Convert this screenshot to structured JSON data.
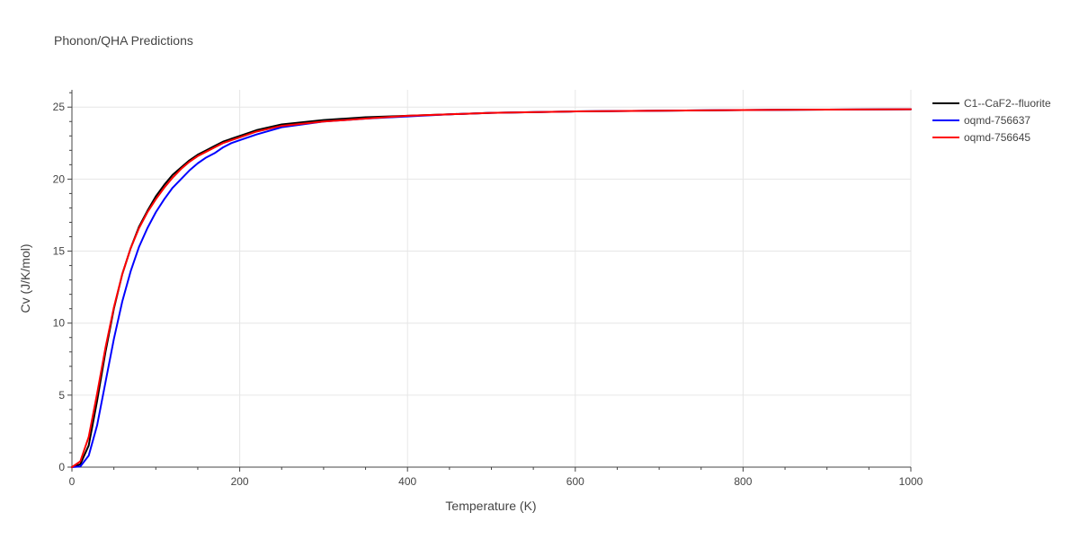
{
  "chart_data": {
    "type": "line",
    "title": "Phonon/QHA Predictions",
    "xlabel": "Temperature (K)",
    "ylabel": "Cv (J/K/mol)",
    "xlim": [
      0,
      1000
    ],
    "ylim": [
      0,
      26.2
    ],
    "x_ticks": [
      0,
      200,
      400,
      600,
      800,
      1000
    ],
    "y_ticks": [
      0,
      5,
      10,
      15,
      20,
      25
    ],
    "grid": true,
    "legend_position": "top-right outside",
    "series": [
      {
        "name": "C1--CaF2--fluorite",
        "color": "#000000",
        "x": [
          0,
          10,
          20,
          30,
          40,
          50,
          60,
          70,
          80,
          90,
          100,
          110,
          120,
          130,
          140,
          150,
          160,
          170,
          180,
          190,
          200,
          220,
          250,
          300,
          350,
          400,
          450,
          500,
          600,
          700,
          800,
          900,
          1000
        ],
        "y": [
          0,
          0.2,
          1.5,
          4.6,
          8.0,
          11.0,
          13.4,
          15.2,
          16.7,
          17.8,
          18.8,
          19.6,
          20.3,
          20.8,
          21.3,
          21.7,
          22.0,
          22.3,
          22.6,
          22.8,
          23.0,
          23.4,
          23.8,
          24.1,
          24.3,
          24.4,
          24.5,
          24.6,
          24.7,
          24.75,
          24.8,
          24.83,
          24.85
        ]
      },
      {
        "name": "oqmd-756637",
        "color": "#0000ff",
        "x": [
          0,
          10,
          20,
          30,
          40,
          50,
          60,
          70,
          80,
          90,
          100,
          110,
          120,
          130,
          140,
          150,
          160,
          170,
          180,
          190,
          200,
          220,
          250,
          300,
          350,
          400,
          450,
          500,
          600,
          700,
          800,
          900,
          1000
        ],
        "y": [
          0,
          0.05,
          0.8,
          2.9,
          5.9,
          8.9,
          11.5,
          13.6,
          15.3,
          16.6,
          17.7,
          18.6,
          19.4,
          20.0,
          20.6,
          21.1,
          21.5,
          21.8,
          22.2,
          22.5,
          22.7,
          23.1,
          23.6,
          24.0,
          24.2,
          24.35,
          24.5,
          24.6,
          24.7,
          24.75,
          24.8,
          24.83,
          24.85
        ]
      },
      {
        "name": "oqmd-756645",
        "color": "#ff0000",
        "x": [
          0,
          10,
          20,
          30,
          40,
          50,
          60,
          70,
          80,
          90,
          100,
          110,
          120,
          130,
          140,
          150,
          160,
          170,
          180,
          190,
          200,
          220,
          250,
          300,
          350,
          400,
          450,
          500,
          600,
          700,
          800,
          900,
          1000
        ],
        "y": [
          0,
          0.4,
          2.1,
          5.1,
          8.3,
          11.1,
          13.4,
          15.2,
          16.6,
          17.7,
          18.6,
          19.4,
          20.1,
          20.7,
          21.2,
          21.6,
          21.9,
          22.2,
          22.5,
          22.7,
          22.9,
          23.3,
          23.7,
          24.0,
          24.2,
          24.4,
          24.5,
          24.6,
          24.7,
          24.75,
          24.8,
          24.83,
          24.85
        ]
      }
    ]
  }
}
